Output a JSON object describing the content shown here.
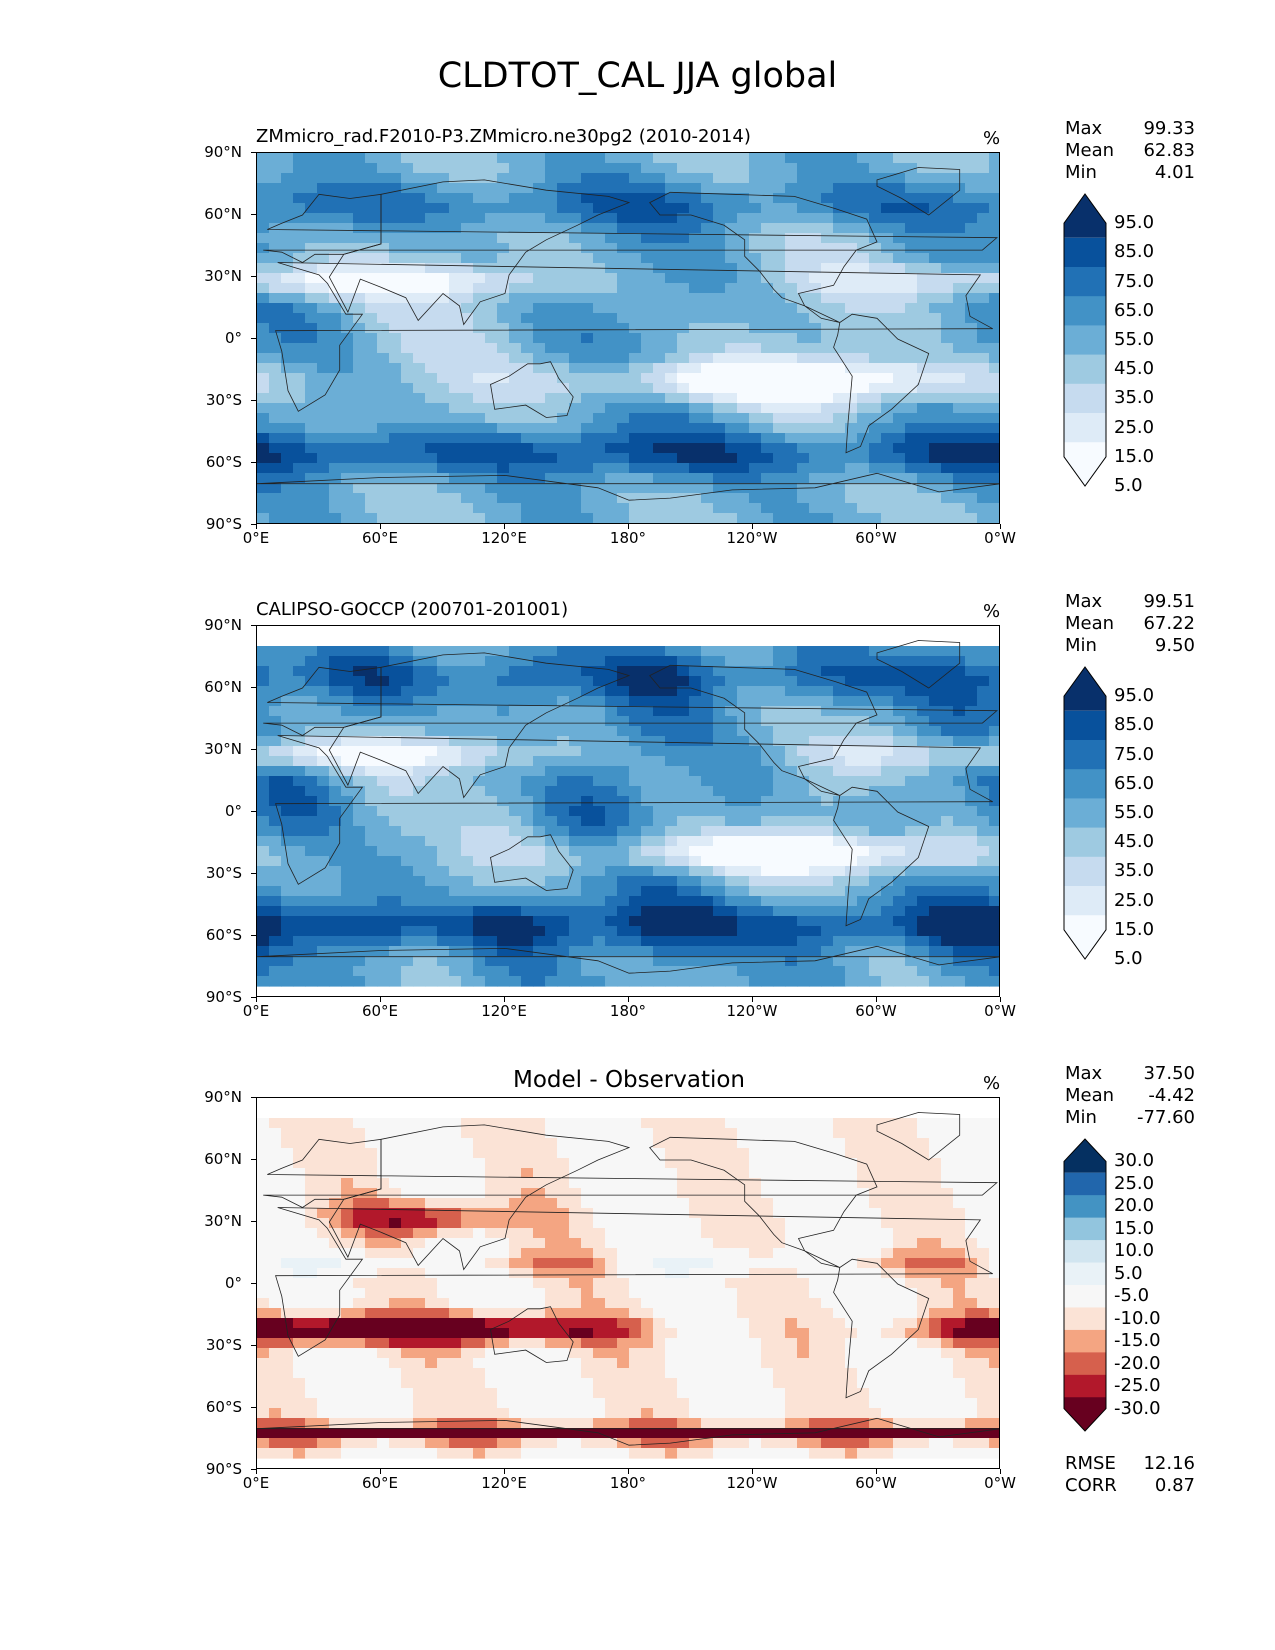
{
  "figure_title": "CLDTOT_CAL JJA global",
  "lat_ticks": [
    "90°N",
    "60°N",
    "30°N",
    "0°",
    "30°S",
    "60°S",
    "90°S"
  ],
  "lon_ticks": [
    "0°E",
    "60°E",
    "120°E",
    "180°",
    "120°W",
    "60°W",
    "0°W"
  ],
  "panels": [
    {
      "title": "ZMmicro_rad.F2010-P3.ZMmicro.ne30pg2 (2010-2014)",
      "units": "%",
      "stats": {
        "max_label": "Max",
        "max": "99.33",
        "mean_label": "Mean",
        "mean": "62.83",
        "min_label": "Min",
        "min": "4.01"
      },
      "colorbar_labels": [
        "95.0",
        "85.0",
        "75.0",
        "65.0",
        "55.0",
        "45.0",
        "35.0",
        "25.0",
        "15.0",
        "5.0"
      ],
      "colors": [
        "#08306b",
        "#08519c",
        "#2171b5",
        "#4292c6",
        "#6baed6",
        "#9ecae1",
        "#c6dbef",
        "#deebf7",
        "#f7fbff"
      ]
    },
    {
      "title": "CALIPSO-GOCCP (200701-201001)",
      "units": "%",
      "stats": {
        "max_label": "Max",
        "max": "99.51",
        "mean_label": "Mean",
        "mean": "67.22",
        "min_label": "Min",
        "min": "9.50"
      },
      "colorbar_labels": [
        "95.0",
        "85.0",
        "75.0",
        "65.0",
        "55.0",
        "45.0",
        "35.0",
        "25.0",
        "15.0",
        "5.0"
      ],
      "colors": [
        "#08306b",
        "#08519c",
        "#2171b5",
        "#4292c6",
        "#6baed6",
        "#9ecae1",
        "#c6dbef",
        "#deebf7",
        "#f7fbff"
      ]
    },
    {
      "title": "Model - Observation",
      "units": "%",
      "stats": {
        "max_label": "Max",
        "max": "37.50",
        "mean_label": "Mean",
        "mean": "-4.42",
        "min_label": "Min",
        "min": "-77.60"
      },
      "colorbar_labels": [
        "30.0",
        "25.0",
        "20.0",
        "15.0",
        "10.0",
        "5.0",
        "-5.0",
        "-10.0",
        "-15.0",
        "-20.0",
        "-25.0",
        "-30.0"
      ],
      "colors": [
        "#053061",
        "#2166ac",
        "#4393c3",
        "#92c5de",
        "#d1e5f0",
        "#e9f2f7",
        "#f7f7f7",
        "#fbe3d6",
        "#f4a582",
        "#d6604d",
        "#b2182b",
        "#67001f"
      ],
      "rmse_label": "RMSE",
      "rmse": "12.16",
      "corr_label": "CORR",
      "corr": "0.87"
    }
  ],
  "chart_data": [
    {
      "type": "heatmap",
      "title": "ZMmicro_rad.F2010-P3.ZMmicro.ne30pg2 (2010-2014)",
      "units": "%",
      "x": [
        "0°E",
        "60°E",
        "120°E",
        "180°",
        "120°W",
        "60°W",
        "0°W"
      ],
      "y": [
        "90°N",
        "60°N",
        "30°N",
        "0°",
        "30°S",
        "60°S",
        "90°S"
      ],
      "levels": [
        5,
        15,
        25,
        35,
        45,
        55,
        65,
        75,
        85,
        95
      ],
      "max": 99.33,
      "mean": 62.83,
      "min": 4.01
    },
    {
      "type": "heatmap",
      "title": "CALIPSO-GOCCP (200701-201001)",
      "units": "%",
      "x": [
        "0°E",
        "60°E",
        "120°E",
        "180°",
        "120°W",
        "60°W",
        "0°W"
      ],
      "y": [
        "90°N",
        "60°N",
        "30°N",
        "0°",
        "30°S",
        "60°S",
        "90°S"
      ],
      "levels": [
        5,
        15,
        25,
        35,
        45,
        55,
        65,
        75,
        85,
        95
      ],
      "max": 99.51,
      "mean": 67.22,
      "min": 9.5
    },
    {
      "type": "heatmap",
      "title": "Model - Observation",
      "units": "%",
      "x": [
        "0°E",
        "60°E",
        "120°E",
        "180°",
        "120°W",
        "60°W",
        "0°W"
      ],
      "y": [
        "90°N",
        "60°N",
        "30°N",
        "0°",
        "30°S",
        "60°S",
        "90°S"
      ],
      "levels": [
        -30,
        -25,
        -20,
        -15,
        -10,
        -5,
        5,
        10,
        15,
        20,
        25,
        30
      ],
      "max": 37.5,
      "mean": -4.42,
      "min": -77.6,
      "rmse": 12.16,
      "corr": 0.87
    }
  ]
}
